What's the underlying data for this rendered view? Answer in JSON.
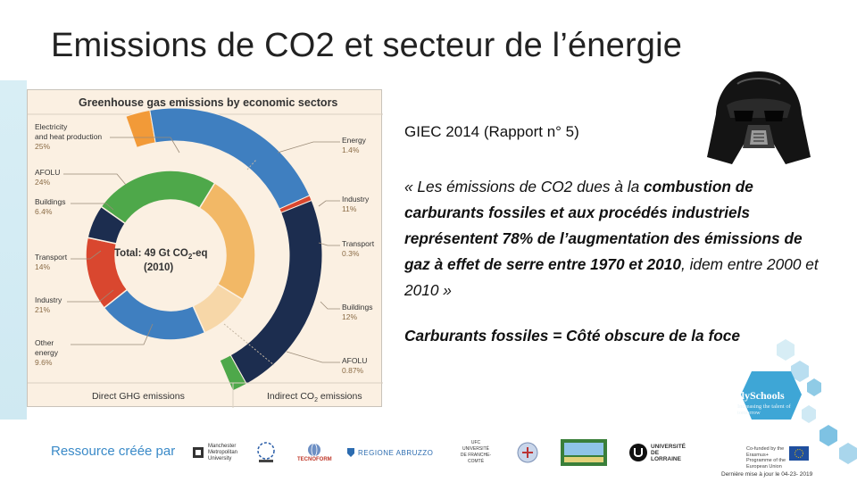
{
  "slide": {
    "title": "Emissions de CO2 et secteur de l’énergie"
  },
  "figure": {
    "title": "Greenhouse gas emissions by economic sectors",
    "center_line1": "Total: 49 Gt CO",
    "center_sub": "2",
    "center_line1b": "-eq",
    "center_line2": "(2010)",
    "footer_direct": "Direct GHG emissions",
    "footer_indirect": "Indirect CO",
    "footer_indirect_sub": "2",
    "footer_indirect_tail": " emissions",
    "direct_labels": [
      {
        "name": "Electricity",
        "name2": "and heat production",
        "value": "25%"
      },
      {
        "name": "AFOLU",
        "name2": "",
        "value": "24%"
      },
      {
        "name": "Buildings",
        "name2": "",
        "value": "6.4%"
      },
      {
        "name": "Transport",
        "name2": "",
        "value": "14%"
      },
      {
        "name": "Industry",
        "name2": "",
        "value": "21%"
      },
      {
        "name": "Other",
        "name2": "energy",
        "value": "9.6%"
      }
    ],
    "indirect_labels": [
      {
        "name": "Energy",
        "value": "1.4%"
      },
      {
        "name": "Industry",
        "value": "11%"
      },
      {
        "name": "Transport",
        "value": "0.3%"
      },
      {
        "name": "Buildings",
        "value": "12%"
      },
      {
        "name": "AFOLU",
        "value": "0.87%"
      }
    ],
    "colors": {
      "electricity": "#f2b866",
      "afolu": "#4ea84a",
      "buildings": "#1c2d4f",
      "transport": "#d9472f",
      "industry": "#3f7fc0",
      "other": "#f7d7a8",
      "energy_outer": "#f29a38"
    }
  },
  "chart_data": {
    "type": "pie",
    "title": "Greenhouse gas emissions by economic sectors",
    "direct": {
      "categories": [
        "Electricity and heat production",
        "AFOLU",
        "Buildings",
        "Transport",
        "Industry",
        "Other energy"
      ],
      "values": [
        25,
        24,
        6.4,
        14,
        21,
        9.6
      ],
      "unit": "%"
    },
    "indirect": {
      "categories": [
        "Energy",
        "Industry",
        "Transport",
        "Buildings",
        "AFOLU"
      ],
      "values": [
        1.4,
        11,
        0.3,
        12,
        0.87
      ],
      "unit": "%"
    },
    "total": "49 Gt CO2-eq (2010)"
  },
  "text": {
    "reference": "GIEC 2014 (Rapport n° 5)",
    "quote_open": "« Les émissions de CO2 dues à la ",
    "quote_bold": "combustion de carburants fossiles et aux procédés industriels représentent 78% de l’augmentation des émissions de gaz à effet de serre entre 1970 et 2010",
    "quote_tail": ", idem entre 2000 et 2010 »",
    "conclusion": "Carburants fossiles = Côté obscure de la foce"
  },
  "branding": {
    "name": "IlySchools",
    "tagline": "Increasing the talent of tomorrow"
  },
  "footer": {
    "label": "Ressource créée par",
    "logos": [
      {
        "text": "Manchester Metropolitan University"
      },
      {
        "text": ""
      },
      {
        "text": "TECNOFORM"
      },
      {
        "text": "REGIONE ABRUZZO"
      },
      {
        "text": "UFC UNIVERSITÉ DE FRANCHE-COMTÉ"
      },
      {
        "text": ""
      },
      {
        "text": "ENSMM"
      },
      {
        "text": "UNIVERSITÉ DE LORRAINE"
      }
    ],
    "cofunded": "Co-funded by the Erasmus+ Programme of the European Union",
    "updated": "Dernière mise à jour le 04-23- 2019"
  }
}
